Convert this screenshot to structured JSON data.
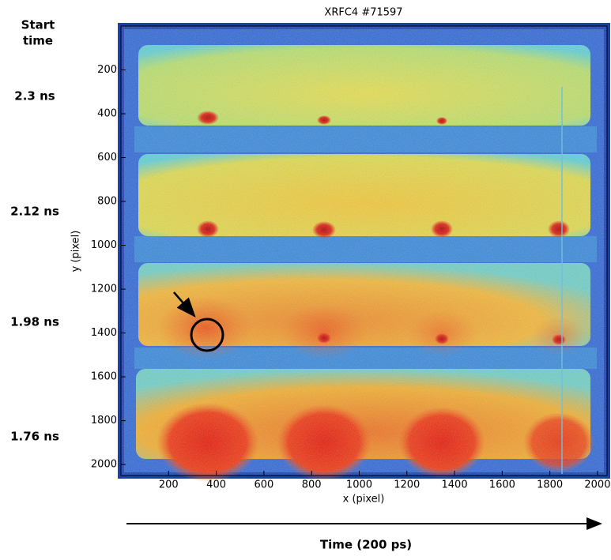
{
  "chart_data": {
    "type": "image",
    "title": "XRFC4 #71597",
    "xlabel": "x (pixel)",
    "ylabel": "y (pixel)",
    "xlim": [
      0,
      2040
    ],
    "ylim": [
      0,
      2050
    ],
    "y_reversed": true,
    "xticks": [
      200,
      400,
      600,
      800,
      1000,
      1200,
      1400,
      1600,
      1800,
      2000
    ],
    "yticks": [
      200,
      400,
      600,
      800,
      1000,
      1200,
      1400,
      1600,
      1800,
      2000
    ],
    "start_time_label": [
      "Start",
      "time"
    ],
    "frame_labels": [
      "2.3 ns",
      "2.12 ns",
      "1.98 ns",
      "1.76 ns"
    ],
    "time_axis_label": "Time (200 ps)"
  }
}
